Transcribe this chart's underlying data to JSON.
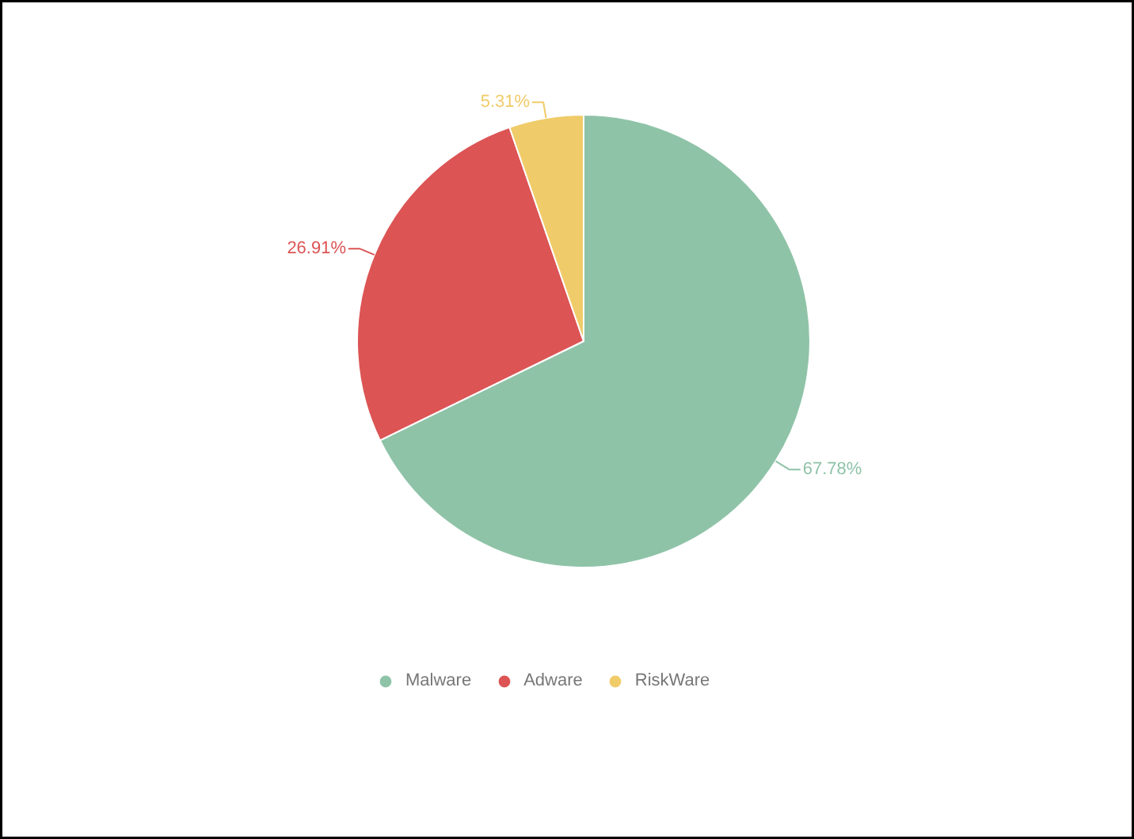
{
  "chart_data": {
    "type": "pie",
    "categories": [
      "Malware",
      "Adware",
      "RiskWare"
    ],
    "values": [
      67.78,
      26.91,
      5.31
    ],
    "colors": [
      "#8fc3a8",
      "#dc5454",
      "#f0cb69"
    ],
    "value_labels": [
      "67.78%",
      "26.91%",
      "5.31%"
    ],
    "legend": "bottom"
  }
}
